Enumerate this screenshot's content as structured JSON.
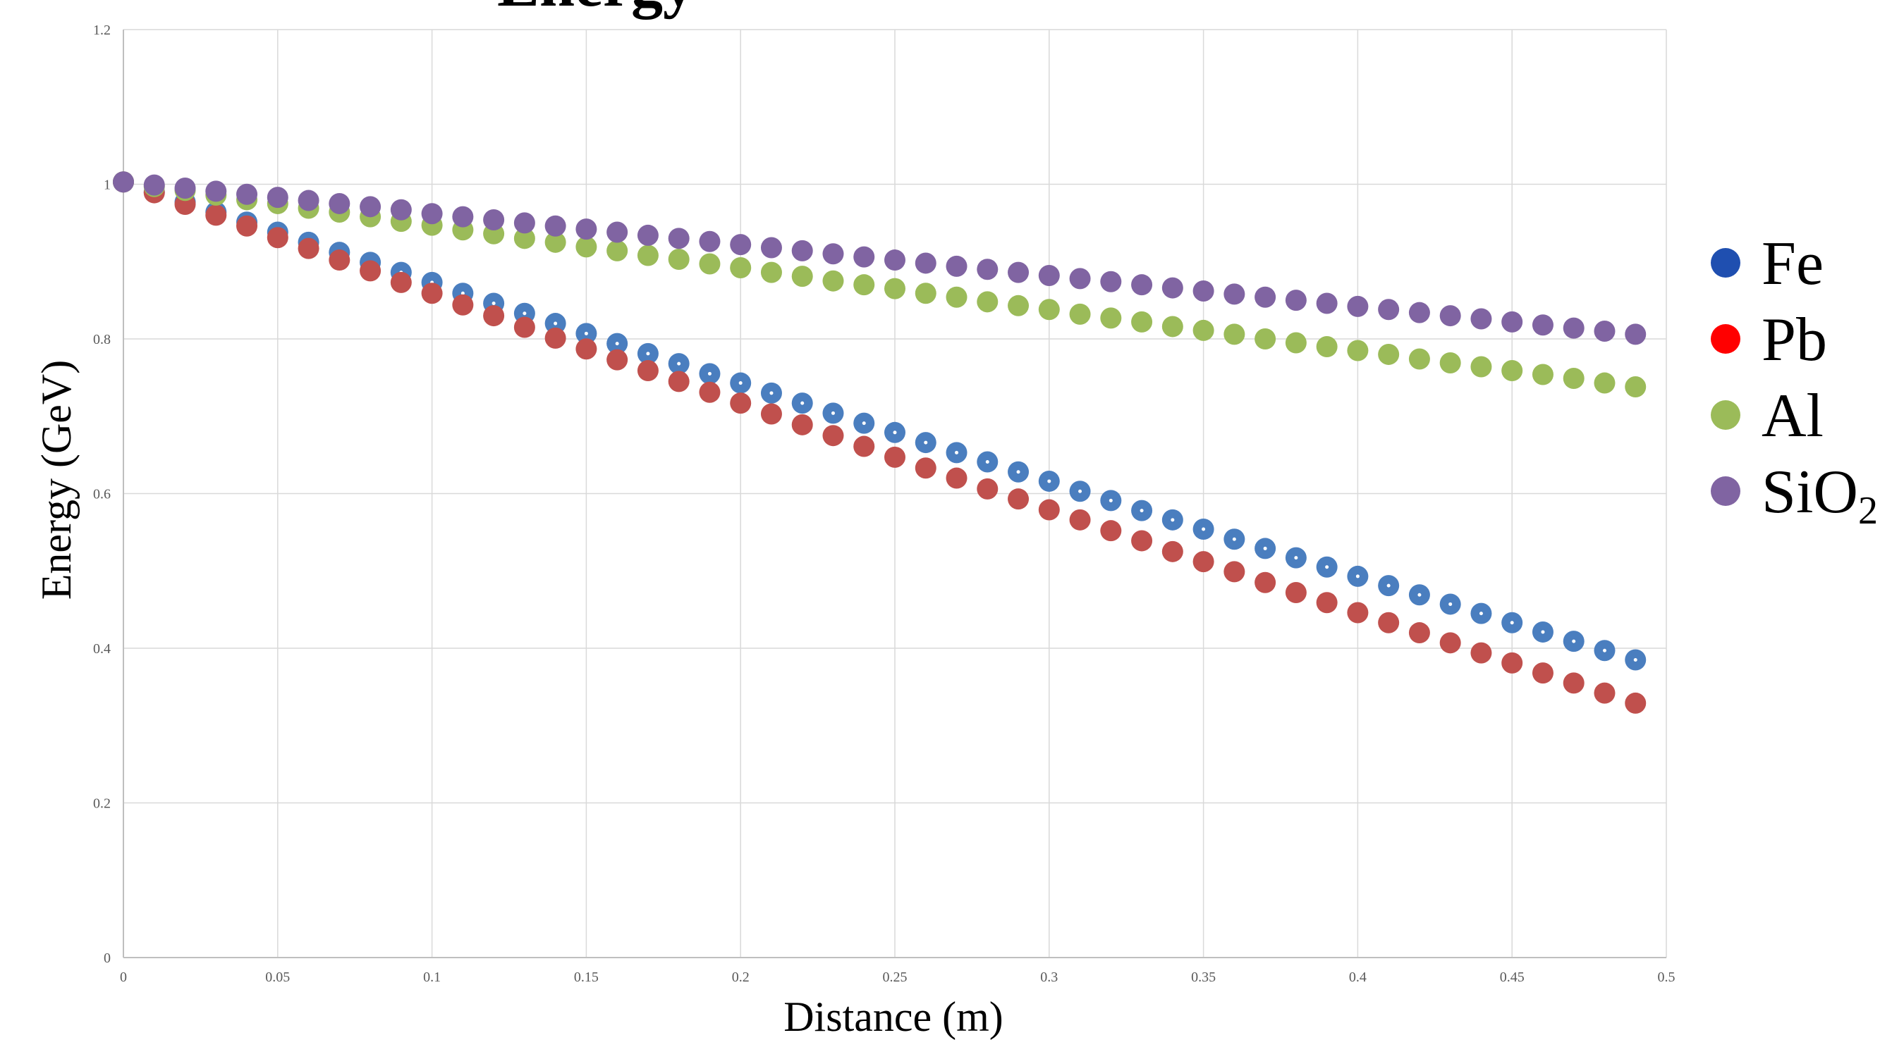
{
  "chart_data": {
    "type": "scatter",
    "title": "Energy",
    "xlabel": "Distance (m)",
    "ylabel": "Energy (GeV)",
    "xlim": [
      0,
      0.5
    ],
    "ylim": [
      0,
      1.2
    ],
    "xticks": [
      "0",
      "0.05",
      "0.1",
      "0.15",
      "0.2",
      "0.25",
      "0.3",
      "0.35",
      "0.4",
      "0.45",
      "0.5"
    ],
    "yticks": [
      "0",
      "0.2",
      "0.4",
      "0.6",
      "0.8",
      "1",
      "1.2"
    ],
    "grid": true,
    "legend_position": "right",
    "x": [
      0,
      0.01,
      0.02,
      0.03,
      0.04,
      0.05,
      0.06,
      0.07,
      0.08,
      0.09,
      0.1,
      0.11,
      0.12,
      0.13,
      0.14,
      0.15,
      0.16,
      0.17,
      0.18,
      0.19,
      0.2,
      0.21,
      0.22,
      0.23,
      0.24,
      0.25,
      0.26,
      0.27,
      0.28,
      0.29,
      0.3,
      0.31,
      0.32,
      0.33,
      0.34,
      0.35,
      0.36,
      0.37,
      0.38,
      0.39,
      0.4,
      0.41,
      0.42,
      0.43,
      0.44,
      0.45,
      0.46,
      0.47,
      0.48,
      0.49
    ],
    "series": [
      {
        "name": "Fe",
        "color": "#4a7ebf",
        "legend_color": "#1f4fb0",
        "values": [
          1.003,
          0.99,
          0.977,
          0.964,
          0.951,
          0.938,
          0.925,
          0.912,
          0.899,
          0.886,
          0.873,
          0.859,
          0.846,
          0.833,
          0.82,
          0.807,
          0.794,
          0.781,
          0.768,
          0.755,
          0.743,
          0.73,
          0.717,
          0.704,
          0.691,
          0.679,
          0.666,
          0.653,
          0.641,
          0.628,
          0.616,
          0.603,
          0.591,
          0.578,
          0.566,
          0.554,
          0.541,
          0.529,
          0.517,
          0.505,
          0.493,
          0.481,
          0.469,
          0.457,
          0.445,
          0.433,
          0.421,
          0.409,
          0.397,
          0.385
        ]
      },
      {
        "name": "Pb",
        "color": "#c0504d",
        "legend_color": "#ff0000",
        "values": [
          1.003,
          0.989,
          0.974,
          0.96,
          0.946,
          0.931,
          0.917,
          0.902,
          0.888,
          0.873,
          0.859,
          0.844,
          0.83,
          0.815,
          0.801,
          0.787,
          0.773,
          0.759,
          0.745,
          0.731,
          0.717,
          0.703,
          0.689,
          0.675,
          0.661,
          0.647,
          0.633,
          0.62,
          0.606,
          0.593,
          0.579,
          0.566,
          0.552,
          0.539,
          0.525,
          0.512,
          0.499,
          0.485,
          0.472,
          0.459,
          0.446,
          0.433,
          0.42,
          0.407,
          0.394,
          0.381,
          0.368,
          0.355,
          0.342,
          0.329
        ]
      },
      {
        "name": "Al",
        "color": "#9bbb59",
        "legend_color": "#9bbb59",
        "values": [
          1.003,
          0.997,
          0.992,
          0.986,
          0.98,
          0.975,
          0.969,
          0.964,
          0.958,
          0.952,
          0.947,
          0.941,
          0.936,
          0.93,
          0.925,
          0.919,
          0.914,
          0.908,
          0.903,
          0.897,
          0.892,
          0.886,
          0.881,
          0.875,
          0.87,
          0.865,
          0.859,
          0.854,
          0.848,
          0.843,
          0.838,
          0.832,
          0.827,
          0.822,
          0.816,
          0.811,
          0.806,
          0.8,
          0.795,
          0.79,
          0.785,
          0.78,
          0.774,
          0.769,
          0.764,
          0.759,
          0.754,
          0.749,
          0.743,
          0.738
        ]
      },
      {
        "name": "SiO",
        "name_subscript": "2",
        "color": "#8064a2",
        "legend_color": "#8064a2",
        "values": [
          1.003,
          0.999,
          0.995,
          0.991,
          0.987,
          0.983,
          0.979,
          0.975,
          0.971,
          0.967,
          0.962,
          0.958,
          0.954,
          0.95,
          0.946,
          0.942,
          0.938,
          0.934,
          0.93,
          0.926,
          0.922,
          0.918,
          0.914,
          0.91,
          0.906,
          0.902,
          0.898,
          0.894,
          0.89,
          0.886,
          0.882,
          0.878,
          0.874,
          0.87,
          0.866,
          0.862,
          0.858,
          0.854,
          0.85,
          0.846,
          0.842,
          0.838,
          0.834,
          0.83,
          0.826,
          0.822,
          0.818,
          0.814,
          0.81,
          0.806
        ]
      }
    ]
  }
}
